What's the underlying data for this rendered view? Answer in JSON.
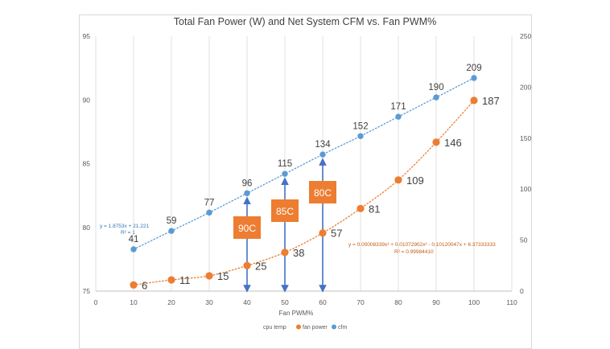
{
  "chart_data": {
    "type": "scatter",
    "title": "Total Fan Power (W) and Net System CFM vs. Fan PWM%",
    "xlabel": "Fan PWM%",
    "x_ticks": [
      "0",
      "10",
      "20",
      "30",
      "40",
      "50",
      "60",
      "70",
      "80",
      "90",
      "100",
      "110"
    ],
    "y_left_ticks": [
      "75",
      "80",
      "85",
      "90",
      "95"
    ],
    "y_right_ticks": [
      "0",
      "50",
      "100",
      "150",
      "200",
      "250"
    ],
    "xlim": [
      0,
      110
    ],
    "ylim_left": [
      75,
      95
    ],
    "ylim_right": [
      0,
      250
    ],
    "grid": "vertical gridlines",
    "legend_position": "bottom",
    "legend": [
      "cpu temp",
      "fan power",
      "cfm"
    ],
    "colors": {
      "fan_power": "#ED7D31",
      "cfm": "#5B9BD5",
      "annotation_box": "#ED7D31",
      "arrow": "#4472C4",
      "trend_text_fan": "#C55A11",
      "trend_text_cfm": "#2E75B6"
    },
    "series": [
      {
        "name": "fan power",
        "axis": "right",
        "x": [
          10,
          20,
          30,
          40,
          50,
          60,
          70,
          80,
          90,
          100
        ],
        "y": [
          6,
          11,
          15,
          25,
          38,
          57,
          81,
          109,
          146,
          187
        ],
        "labels": [
          "6",
          "11",
          "15",
          "25",
          "38",
          "57",
          "81",
          "109",
          "146",
          "187"
        ]
      },
      {
        "name": "cfm",
        "axis": "right",
        "x": [
          10,
          20,
          30,
          40,
          50,
          60,
          70,
          80,
          90,
          100
        ],
        "y": [
          41,
          59,
          77,
          96,
          115,
          134,
          152,
          171,
          190,
          209
        ],
        "labels": [
          "41",
          "59",
          "77",
          "96",
          "115",
          "134",
          "152",
          "171",
          "190",
          "209"
        ]
      }
    ],
    "trendline_labels": {
      "cfm": [
        "y = 1.8753x + 21.221",
        "R² = 1"
      ],
      "fan_power": [
        "y = 0.00008339x³ + 0.01072902x² - 0.10120047x + 6.37333333",
        "R² = 0.99984410"
      ]
    },
    "annotations": [
      {
        "label": "90C",
        "x": 40
      },
      {
        "label": "85C",
        "x": 50
      },
      {
        "label": "80C",
        "x": 60
      }
    ]
  }
}
